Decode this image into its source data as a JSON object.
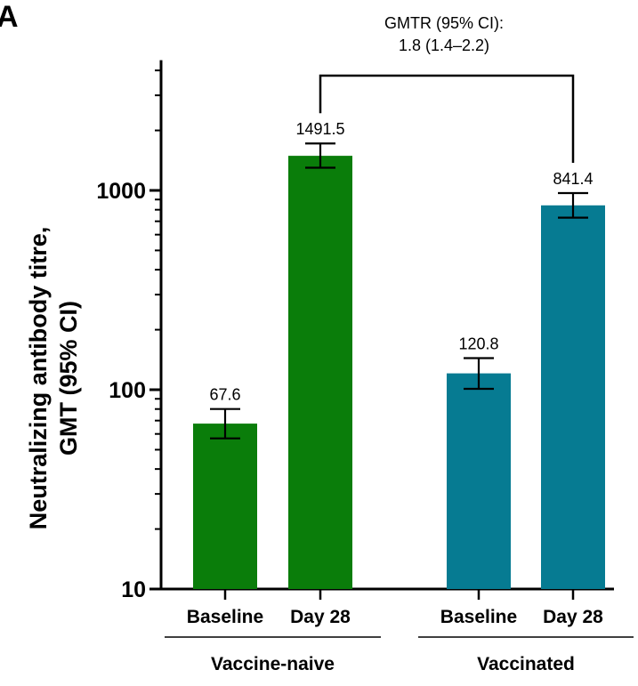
{
  "panel_label": "A",
  "colors": {
    "vaccine_naive": "#0a7d0a",
    "vaccinated": "#067b92",
    "axis": "#000000"
  },
  "chart_data": {
    "type": "bar",
    "title": "",
    "xlabel": "",
    "ylabel": [
      "Neutralizing antibody titre,",
      "GMT (95% CI)"
    ],
    "yscale": "log",
    "ylim": [
      10,
      4500
    ],
    "yticks": [
      10,
      100,
      1000
    ],
    "ytick_labels": [
      "10",
      "100",
      "1000"
    ],
    "groups": [
      "Vaccine-naive",
      "Vaccinated"
    ],
    "bars": [
      {
        "group": "Vaccine-naive",
        "category": "Baseline",
        "value": 67.6,
        "ci_low": 57,
        "ci_high": 80,
        "label": "67.6"
      },
      {
        "group": "Vaccine-naive",
        "category": "Day 28",
        "value": 1491.5,
        "ci_low": 1300,
        "ci_high": 1720,
        "label": "1491.5"
      },
      {
        "group": "Vaccinated",
        "category": "Baseline",
        "value": 120.8,
        "ci_low": 101,
        "ci_high": 144,
        "label": "120.8"
      },
      {
        "group": "Vaccinated",
        "category": "Day 28",
        "value": 841.4,
        "ci_low": 730,
        "ci_high": 970,
        "label": "841.4"
      }
    ],
    "comparison": {
      "lines": [
        "GMTR (95% CI):",
        "1.8 (1.4–2.2)"
      ],
      "from_bar": 1,
      "to_bar": 3
    }
  }
}
